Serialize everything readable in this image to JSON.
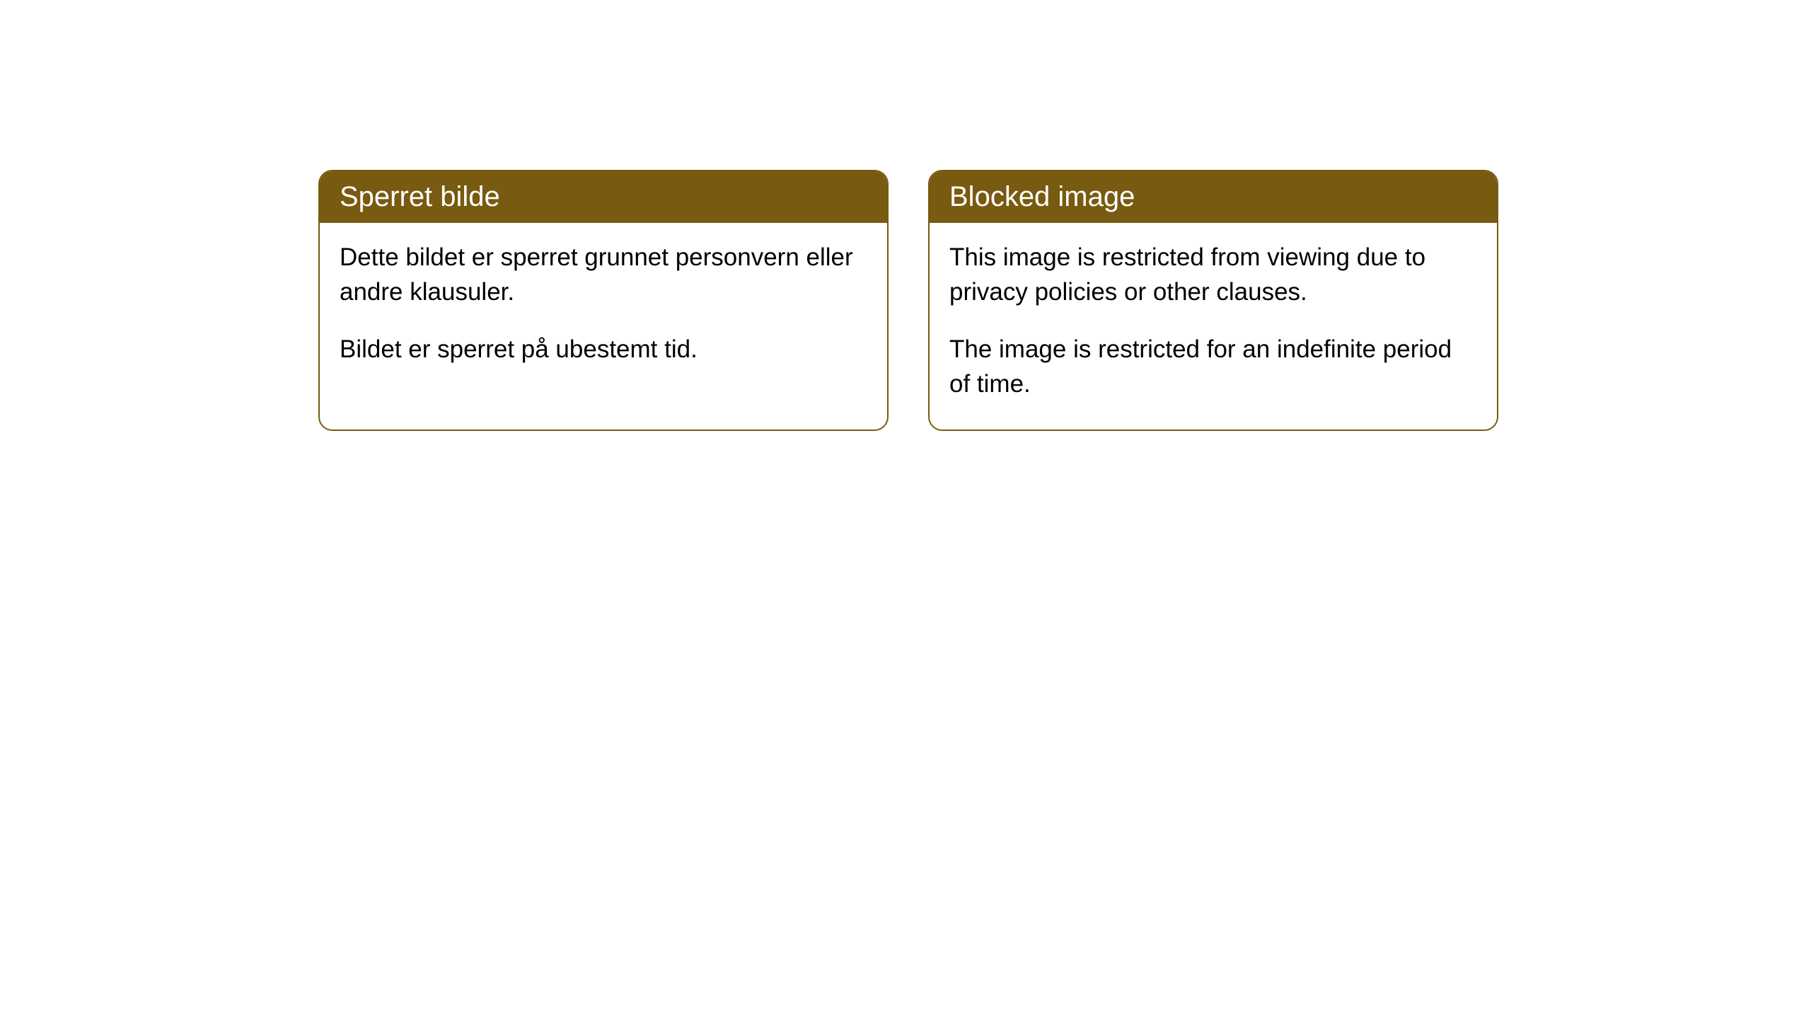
{
  "cards": [
    {
      "title": "Sperret bilde",
      "paragraph1": "Dette bildet er sperret grunnet personvern eller andre klausuler.",
      "paragraph2": "Bildet er sperret på ubestemt tid."
    },
    {
      "title": "Blocked image",
      "paragraph1": "This image is restricted from viewing due to privacy policies or other clauses.",
      "paragraph2": "The image is restricted for an indefinite period of time."
    }
  ],
  "styling": {
    "header_bg_color": "#785a10",
    "header_text_color": "#ffffff",
    "border_color": "#785a10",
    "body_bg_color": "#ffffff",
    "body_text_color": "#000000",
    "page_bg_color": "#ffffff",
    "border_radius": 20,
    "header_fontsize": 40,
    "body_fontsize": 35
  }
}
